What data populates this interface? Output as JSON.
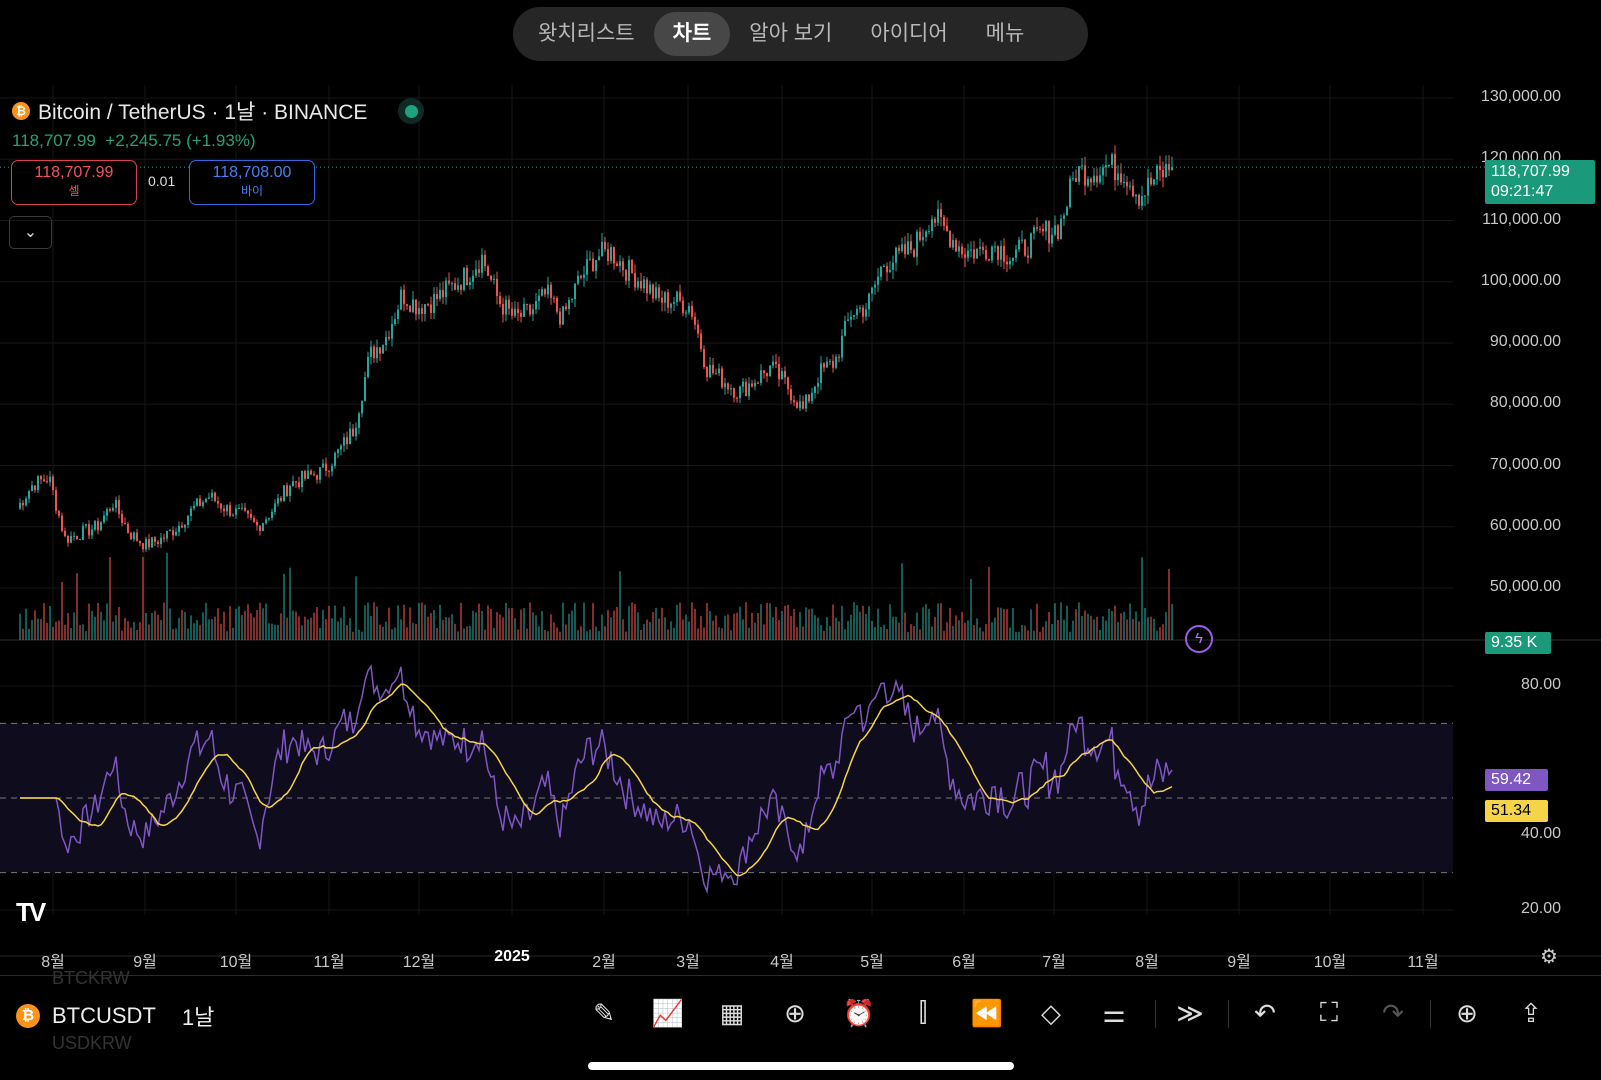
{
  "nav": {
    "tabs": [
      {
        "label": "왓치리스트",
        "active": false
      },
      {
        "label": "차트",
        "active": true
      },
      {
        "label": "알아 보기",
        "active": false
      },
      {
        "label": "아이디어",
        "active": false
      },
      {
        "label": "메뉴",
        "active": false
      }
    ]
  },
  "symbol": {
    "title": "Bitcoin / TetherUS · 1날 · BINANCE",
    "last": "118,707.99",
    "change": "+2,245.75 (+1.93%)",
    "sell_price": "118,707.99",
    "sell_label": "셀",
    "buy_price": "118,708.00",
    "buy_label": "바이",
    "spread": "0.01"
  },
  "price_axis": {
    "labels": [
      "130,000.00",
      "120,000.00",
      "110,000.00",
      "100,000.00",
      "90,000.00",
      "80,000.00",
      "70,000.00",
      "60,000.00",
      "50,000.00"
    ],
    "last_price": "118,707.99",
    "countdown": "09:21:47",
    "volume": "9.35 K"
  },
  "rsi_axis": {
    "labels": [
      "80.00",
      "40.00",
      "20.00"
    ],
    "rsi": "59.42",
    "rsi_ma": "51.34"
  },
  "time_axis": [
    "8월",
    "9월",
    "10월",
    "11월",
    "12월",
    "2025",
    "2월",
    "3월",
    "4월",
    "5월",
    "6월",
    "7월",
    "8월",
    "9월",
    "10월",
    "11월"
  ],
  "colors": {
    "up": "#26a69a",
    "down": "#ef5350",
    "rsi": "#7e57c2",
    "rsi_ma": "#f5d547",
    "accent": "#1a9a7a"
  },
  "chart_data": {
    "type": "candlestick",
    "interval": "1D",
    "weekly_closes_start": "2024-07-20",
    "weekly_closes": [
      63000,
      67000,
      68000,
      58000,
      59000,
      60000,
      64000,
      59000,
      57000,
      58000,
      60000,
      63000,
      65000,
      63000,
      62000,
      60000,
      63000,
      67000,
      68000,
      69000,
      72000,
      76000,
      88000,
      91000,
      98000,
      96000,
      97000,
      99000,
      101000,
      104000,
      97000,
      94000,
      95000,
      98000,
      94000,
      100000,
      104000,
      105000,
      102000,
      100000,
      97000,
      97000,
      96000,
      86000,
      84000,
      82000,
      84000,
      86000,
      83000,
      79000,
      85000,
      87000,
      95000,
      96000,
      103000,
      104000,
      106000,
      111000,
      108000,
      105000,
      105000,
      106000,
      104000,
      106000,
      108000,
      109000,
      118000,
      118000,
      119000,
      118000,
      114000,
      117000,
      118708
    ],
    "ylim": [
      45000,
      130000
    ],
    "rsi_bands": [
      30,
      50,
      70
    ],
    "rsi_range": [
      20,
      80
    ]
  },
  "bottom": {
    "symbol": "BTCUSDT",
    "interval": "1날",
    "prev_symbol": "BTCKRW",
    "next_symbol": "USDKRW"
  }
}
